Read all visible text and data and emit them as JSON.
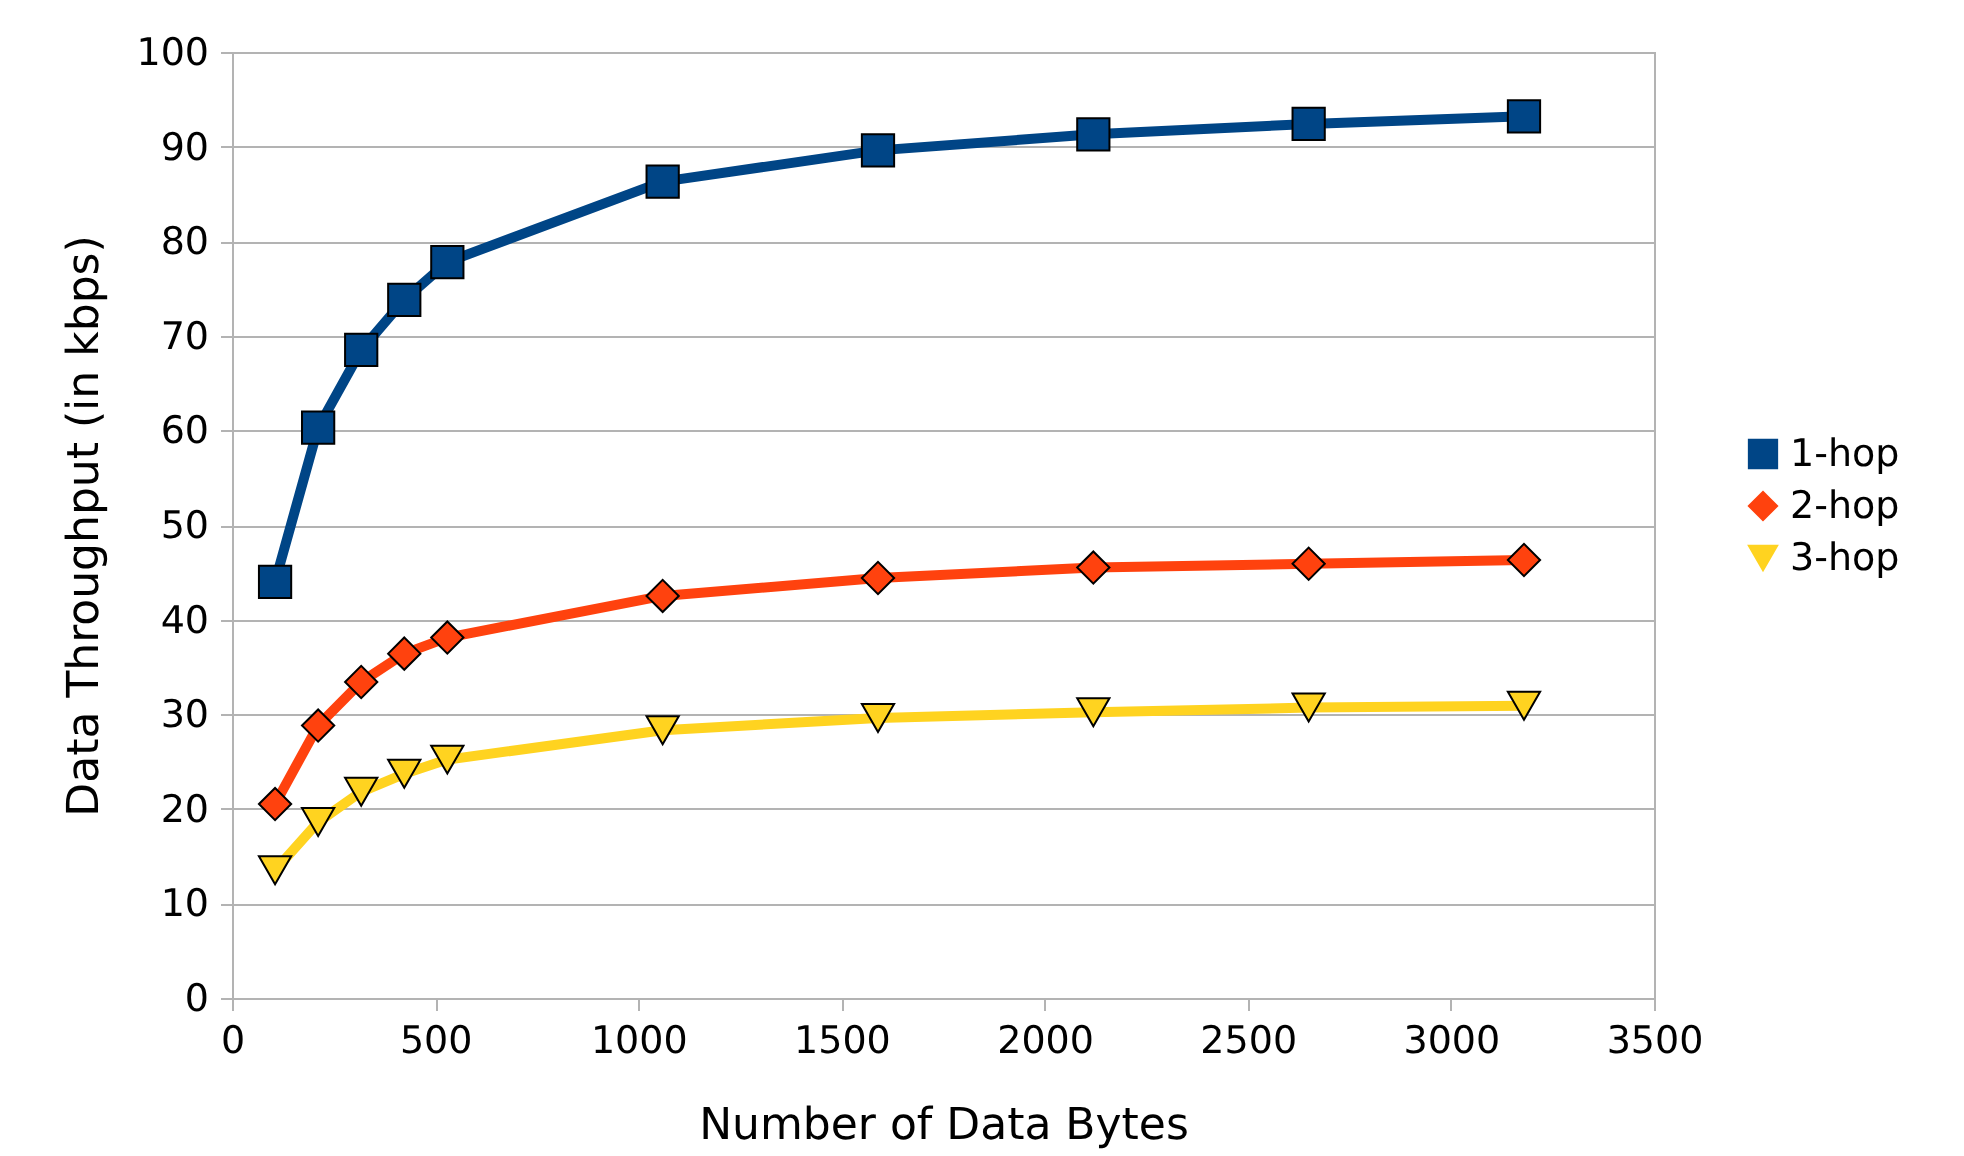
{
  "chart_data": {
    "type": "line",
    "xlabel": "Number of Data Bytes",
    "ylabel": "Data Throughput (in kbps)",
    "x": [
      106,
      212,
      318,
      424,
      530,
      1060,
      1590,
      2120,
      2650,
      3180
    ],
    "series": [
      {
        "name": "1-hop",
        "color": "#004586",
        "marker": "square",
        "values": [
          44,
          60.3,
          68.5,
          73.8,
          77.8,
          86.3,
          89.6,
          91.3,
          92.4,
          93.2
        ]
      },
      {
        "name": "2-hop",
        "color": "#ff420e",
        "marker": "diamond",
        "values": [
          20.5,
          28.8,
          33.4,
          36.4,
          38.1,
          42.5,
          44.4,
          45.5,
          45.9,
          46.3
        ]
      },
      {
        "name": "3-hop",
        "color": "#ffd320",
        "marker": "triangle-down",
        "values": [
          13.5,
          18.6,
          21.8,
          23.7,
          25.2,
          28.3,
          29.6,
          30.2,
          30.7,
          30.9
        ]
      }
    ],
    "xlim": [
      0,
      3500
    ],
    "xticks": [
      0,
      500,
      1000,
      1500,
      2000,
      2500,
      3000,
      3500
    ],
    "ylim": [
      0,
      100
    ],
    "yticks": [
      0,
      10,
      20,
      30,
      40,
      50,
      60,
      70,
      80,
      90,
      100
    ],
    "grid": "y",
    "legend": "right",
    "line_style": "solid"
  }
}
